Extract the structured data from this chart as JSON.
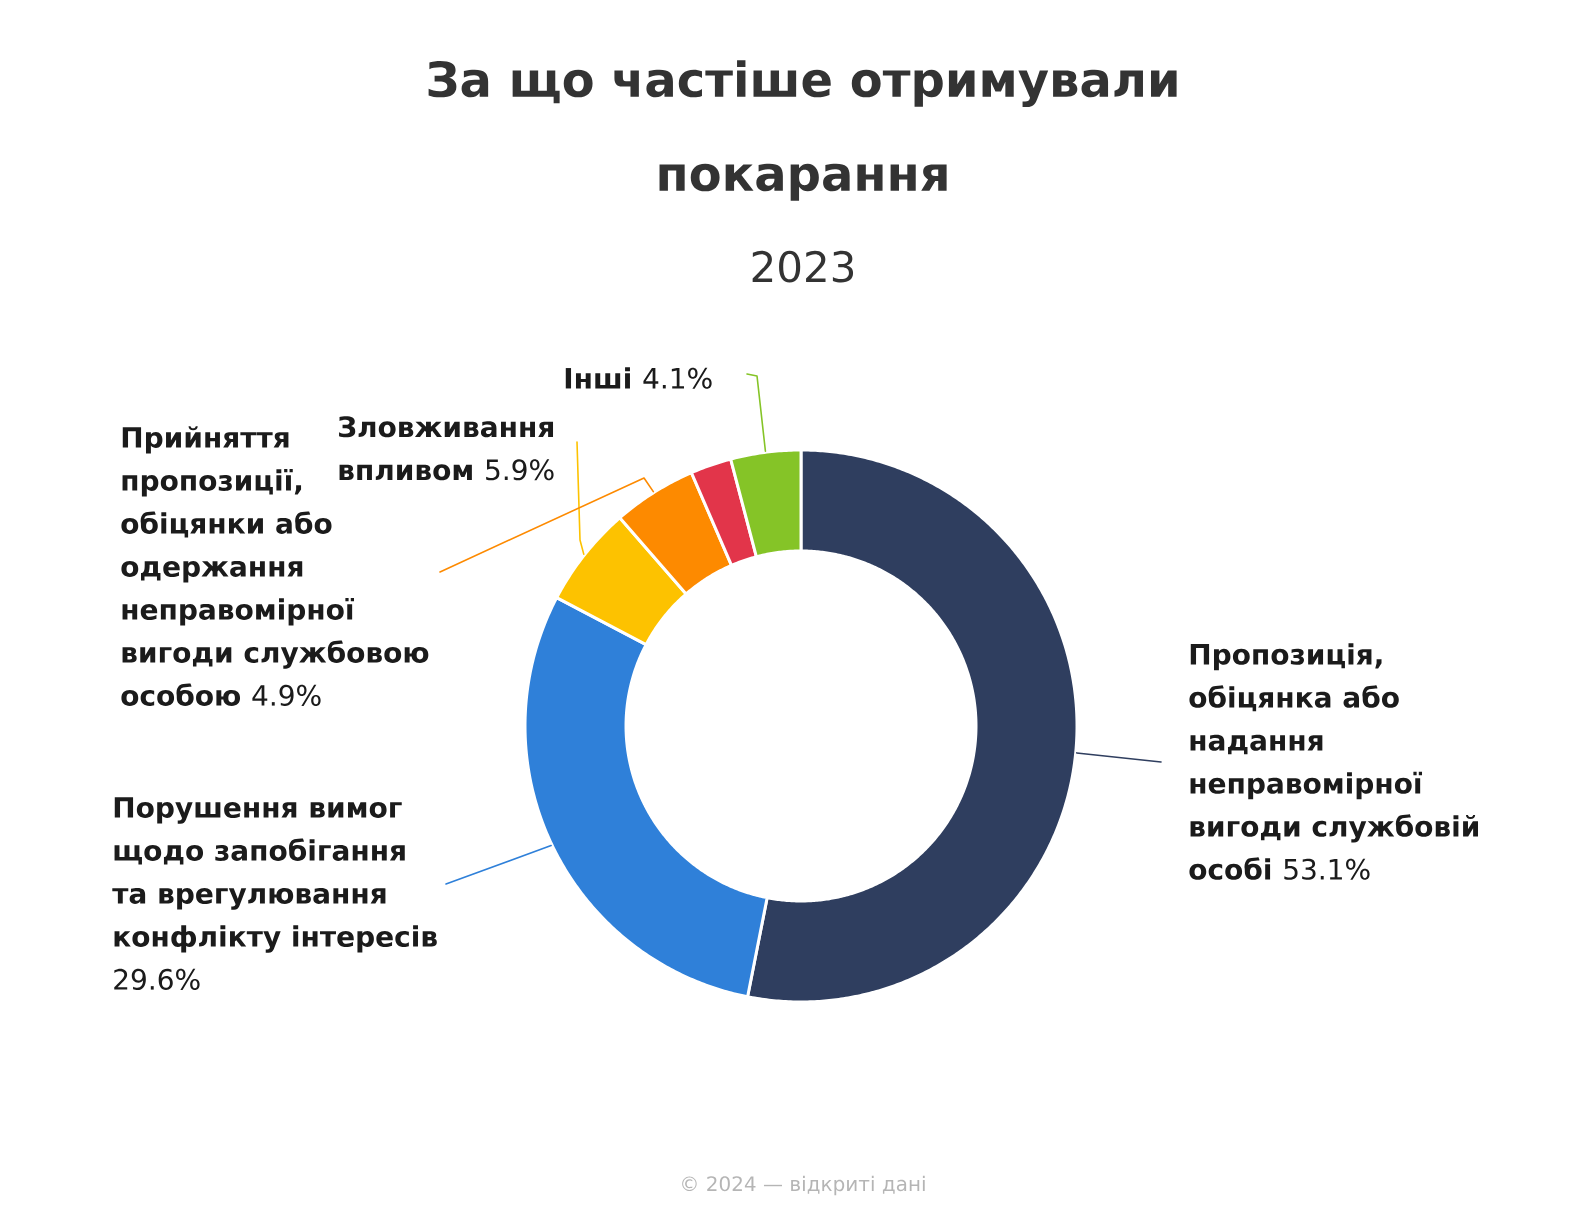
{
  "chart_data": {
    "type": "donut",
    "title": "За що частіше отримували покарання",
    "subtitle": "2023",
    "categories": [
      "Пропозиція, обіцянка або надання неправомірної вигоди службовій особі",
      "Порушення вимог щодо запобігання та врегулювання конфлікту інтересів",
      "Зловживання впливом",
      "Прийняття пропозиції, обіцянки або одержання неправомірної вигоди службовою особою",
      null,
      "Інші"
    ],
    "values": [
      53.1,
      29.6,
      5.9,
      4.9,
      2.4,
      4.1
    ],
    "value_labels": [
      "53.1%",
      "29.6%",
      "5.9%",
      "4.9%",
      null,
      "4.1%"
    ],
    "colors": [
      "#2f3e5f",
      "#2f80d9",
      "#fdc200",
      "#fd8a00",
      "#e2354a",
      "#85c427"
    ],
    "annotations": [
      "© 2024 — відкриті дані"
    ]
  }
}
